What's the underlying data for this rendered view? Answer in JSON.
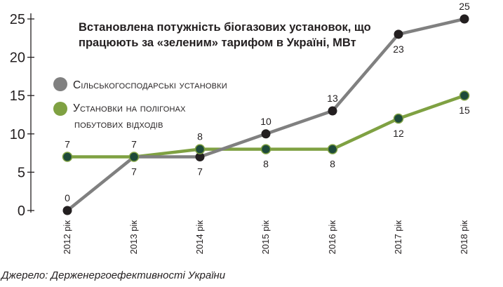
{
  "chart_data": {
    "type": "line",
    "title": "Встановлена потужність біогазових установок, що працюють за «зеленим» тарифом в Україні, МВт",
    "categories": [
      "2012 рік",
      "2013 рік",
      "2014 рік",
      "2015 рік",
      "2016 рік",
      "2017 рік",
      "2018 рік"
    ],
    "y_ticks": [
      "0",
      "5",
      "10",
      "15",
      "20",
      "25"
    ],
    "ylim": [
      0,
      25
    ],
    "xlabel": "",
    "ylabel": "",
    "grid": false,
    "legend_position": "left",
    "series": [
      {
        "name": "Сільськогосподарські установки",
        "color": "#808080",
        "values": [
          0,
          7,
          7,
          10,
          13,
          23,
          25
        ],
        "labels": [
          "0",
          "7",
          "7",
          "10",
          "13",
          "23",
          "25"
        ],
        "label_pos": [
          "above",
          "above",
          "below",
          "above",
          "above",
          "below",
          "above"
        ]
      },
      {
        "name": "Установки на полігонах побутових відходів",
        "color": "#7fa142",
        "values": [
          7,
          7,
          8,
          8,
          8,
          12,
          15
        ],
        "labels": [
          "7",
          "7",
          "8",
          "8",
          "8",
          "12",
          "15"
        ],
        "label_pos": [
          "above",
          "below",
          "above",
          "below",
          "below",
          "below",
          "below"
        ]
      }
    ]
  },
  "legend": [
    {
      "line1": "Сільськогосподарські установки",
      "line2": ""
    },
    {
      "line1": "Установки на полігонах",
      "line2": "побутових відходів"
    }
  ],
  "source": "Джерело: Держенергоефективності України",
  "colors": {
    "marker_fill": "#231f20",
    "axis": "#231f20"
  }
}
